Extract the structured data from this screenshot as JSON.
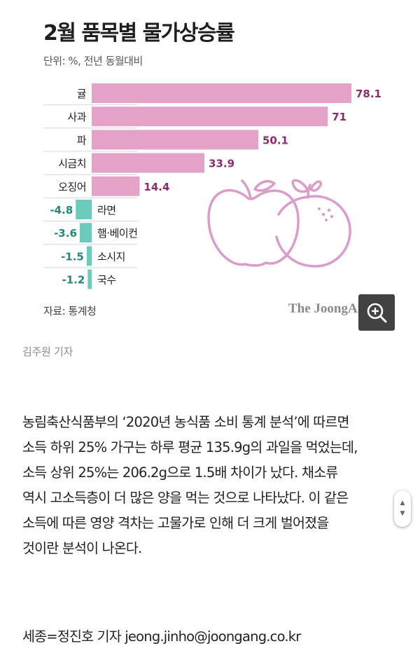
{
  "chart_data": {
    "type": "bar",
    "orientation": "horizontal",
    "title": "2월 품목별 물가상승률",
    "unit_note": "단위: %, 전년 동월대비",
    "source": "자료: 통계청",
    "categories": [
      "귤",
      "사과",
      "파",
      "시금치",
      "오징어",
      "라면",
      "햄·베이컨",
      "소시지",
      "국수"
    ],
    "values": [
      78.1,
      71,
      50.1,
      33.9,
      14.4,
      -4.8,
      -3.6,
      -1.5,
      -1.2
    ],
    "value_labels": [
      "78.1",
      "71",
      "50.1",
      "33.9",
      "14.4",
      "-4.8",
      "-3.6",
      "-1.5",
      "-1.2"
    ],
    "xlim": [
      -6,
      80
    ],
    "grid": false,
    "legend": "none",
    "colors": {
      "positive": "#e4a2c8",
      "negative": "#6ccbbd",
      "positive_label": "#8c2c6e",
      "negative_label": "#1e8a7c"
    }
  },
  "branding": {
    "logo_text": "The JoongAng"
  },
  "caption": "김주원 기자",
  "article": {
    "lines": [
      "농림축산식품부의 ‘2020년 농식품 소비 통계 분석’에 따르면",
      "소득 하위 25% 가구는 하루 평균 135.9g의 과일을 먹었는데,",
      "소득 상위 25%는 206.2g으로 1.5배 차이가 났다. 채소류",
      "역시 고소득층이 더 많은 양을 먹는 것으로 나타났다. 이 같은",
      "소득에 따른 영양 격차는 고물가로 인해 더 크게 벌어졌을",
      "것이란 분석이 나온다."
    ],
    "byline": "세종=정진호 기자 jeong.jinho@joongang.co.kr"
  },
  "icons": {
    "zoom": "zoom-in-icon",
    "illustration": "apple-orange-illustration"
  }
}
